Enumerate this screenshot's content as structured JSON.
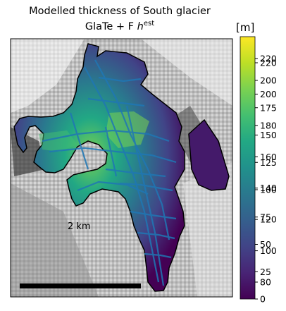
{
  "chart_data": {
    "type": "heatmap",
    "title_line1": "Modelled thickness of South glacier",
    "title_line2_prefix": "GlaTe + F ",
    "title_line2_symbol": "h",
    "title_line2_sup": "est",
    "colorbar_label": "[m]",
    "colormap": "viridis",
    "value_range": [
      0,
      240
    ],
    "colorbar_ticks_right": [
      "0",
      "25",
      "50",
      "75",
      "100",
      "125",
      "150",
      "175",
      "200",
      "220"
    ],
    "colorbar_ticks_right_values": [
      0,
      25,
      50,
      75,
      100,
      125,
      150,
      175,
      200,
      220
    ],
    "colorbar_ticks_left": [
      "80",
      "100",
      "120",
      "140",
      "160",
      "180",
      "200",
      "220"
    ],
    "colorbar_ticks_left_values": [
      80,
      100,
      120,
      140,
      160,
      180,
      200,
      220
    ],
    "scalebar_label": "2 km",
    "survey_line_color": "#1f77b4",
    "outline_color": "#000000"
  }
}
